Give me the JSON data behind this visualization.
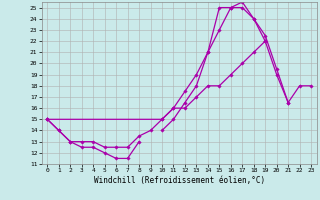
{
  "xlabel": "Windchill (Refroidissement éolien,°C)",
  "bg_color": "#caeaea",
  "grid_color": "#b0b0b0",
  "line_color": "#aa00aa",
  "xlim": [
    -0.5,
    23.5
  ],
  "ylim": [
    11,
    25.5
  ],
  "xticks": [
    0,
    1,
    2,
    3,
    4,
    5,
    6,
    7,
    8,
    9,
    10,
    11,
    12,
    13,
    14,
    15,
    16,
    17,
    18,
    19,
    20,
    21,
    22,
    23
  ],
  "yticks": [
    11,
    12,
    13,
    14,
    15,
    16,
    17,
    18,
    19,
    20,
    21,
    22,
    23,
    24,
    25
  ],
  "lines": [
    {
      "x": [
        0,
        1,
        2,
        3,
        4,
        5,
        6,
        7,
        8
      ],
      "y": [
        15,
        14,
        13,
        12.5,
        12.5,
        12,
        11.5,
        11.5,
        13
      ]
    },
    {
      "x": [
        0,
        1,
        2,
        3,
        4,
        5,
        6,
        7,
        8,
        9,
        10,
        11,
        12,
        13,
        14,
        15,
        16,
        17,
        18,
        19,
        20,
        21,
        22,
        23
      ],
      "y": [
        15,
        14,
        13,
        13,
        13,
        12.5,
        12.5,
        12.5,
        13.5,
        14,
        15,
        16,
        16,
        17,
        18,
        18,
        19,
        20,
        21,
        22,
        19,
        16.5,
        18,
        18
      ]
    },
    {
      "x": [
        0,
        10,
        11,
        12,
        13,
        14,
        15,
        16,
        17,
        18,
        19,
        20,
        21
      ],
      "y": [
        15,
        15,
        16,
        17.5,
        19,
        21,
        23,
        25,
        25,
        24,
        22.5,
        19.5,
        16.5
      ]
    },
    {
      "x": [
        10,
        11,
        12,
        13,
        14,
        15,
        16,
        17,
        18,
        19
      ],
      "y": [
        14,
        15,
        16.5,
        18,
        21,
        25,
        25,
        25.5,
        24,
        22
      ]
    }
  ]
}
